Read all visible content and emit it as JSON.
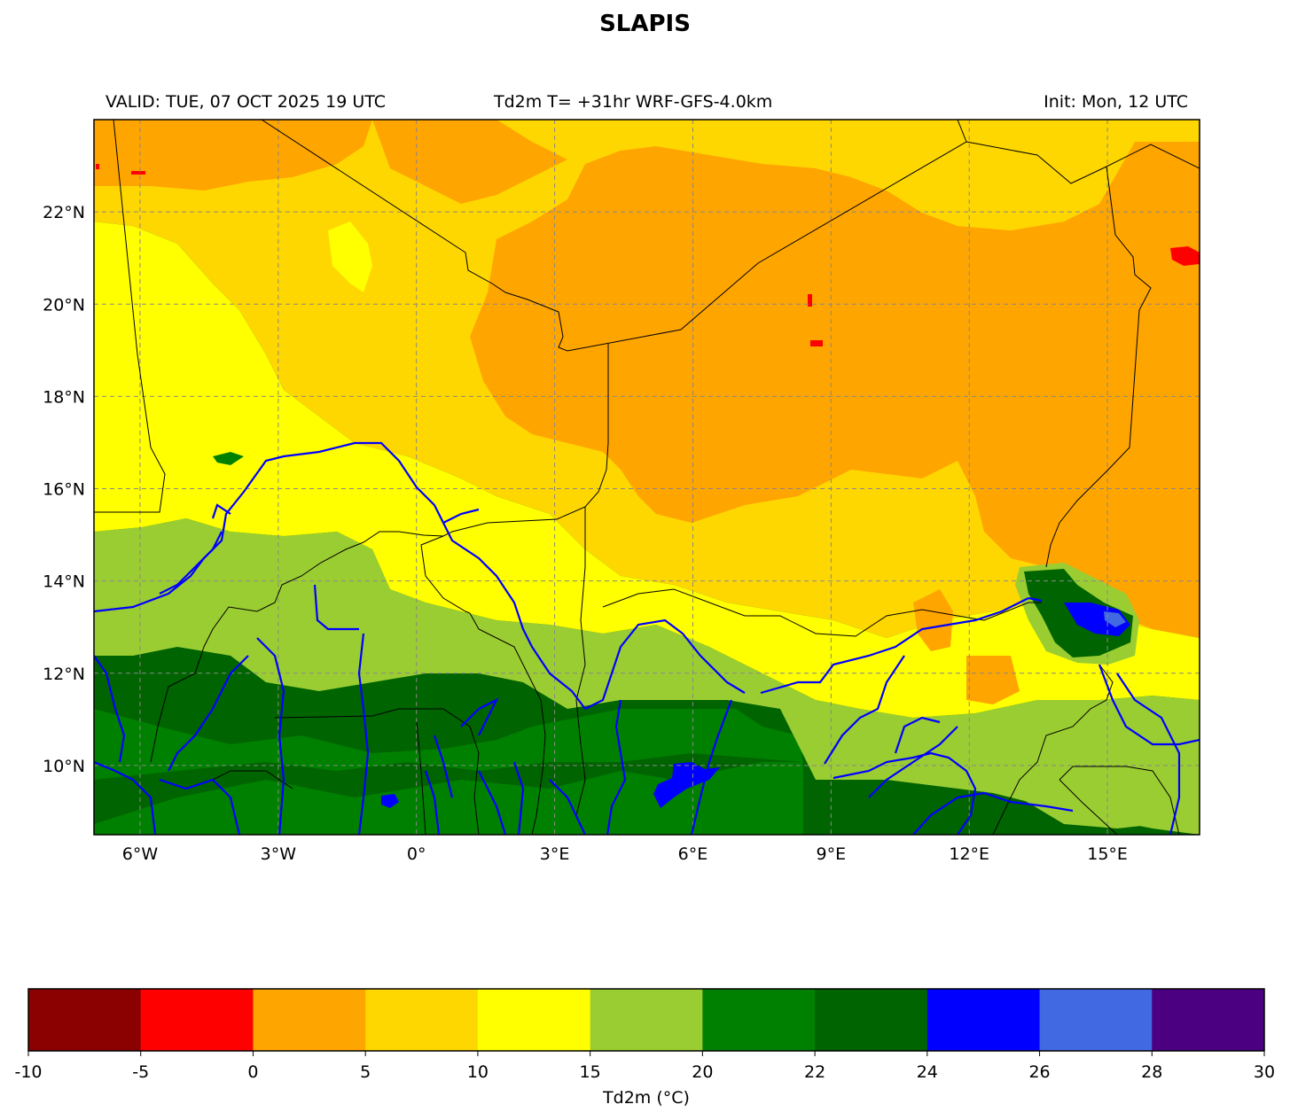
{
  "title": "SLAPIS",
  "subtitle_left": "VALID: TUE, 07 OCT 2025 19 UTC",
  "subtitle_center": "Td2m T= +31hr WRF-GFS-4.0km",
  "subtitle_right": "Init: Mon, 12 UTC",
  "map": {
    "lon_range": [
      -7.0,
      17.0
    ],
    "lat_range": [
      8.5,
      24.0
    ],
    "lon_ticks": [
      {
        "value": -6,
        "label": "6°W"
      },
      {
        "value": -3,
        "label": "3°W"
      },
      {
        "value": 0,
        "label": "0°"
      },
      {
        "value": 3,
        "label": "3°E"
      },
      {
        "value": 6,
        "label": "6°E"
      },
      {
        "value": 9,
        "label": "9°E"
      },
      {
        "value": 12,
        "label": "12°E"
      },
      {
        "value": 15,
        "label": "15°E"
      }
    ],
    "lat_ticks": [
      {
        "value": 10,
        "label": "10°N"
      },
      {
        "value": 12,
        "label": "12°N"
      },
      {
        "value": 14,
        "label": "14°N"
      },
      {
        "value": 16,
        "label": "16°N"
      },
      {
        "value": 18,
        "label": "18°N"
      },
      {
        "value": 20,
        "label": "20°N"
      },
      {
        "value": 22,
        "label": "22°N"
      }
    ],
    "gridlines": true
  },
  "colorbar": {
    "label": "Td2m (°C)",
    "bounds": [
      -10,
      -5,
      0,
      5,
      10,
      15,
      20,
      22,
      24,
      26,
      28,
      30
    ],
    "tick_labels": [
      "-10",
      "-5",
      "0",
      "5",
      "10",
      "15",
      "20",
      "22",
      "24",
      "26",
      "28",
      "30"
    ],
    "colors": [
      "#8b0000",
      "#ff0000",
      "#ffa500",
      "#ffd700",
      "#ffff00",
      "#9acd32",
      "#008000",
      "#006400",
      "#0000ff",
      "#4169e1",
      "#4b0082"
    ],
    "orientation": "horizontal"
  }
}
